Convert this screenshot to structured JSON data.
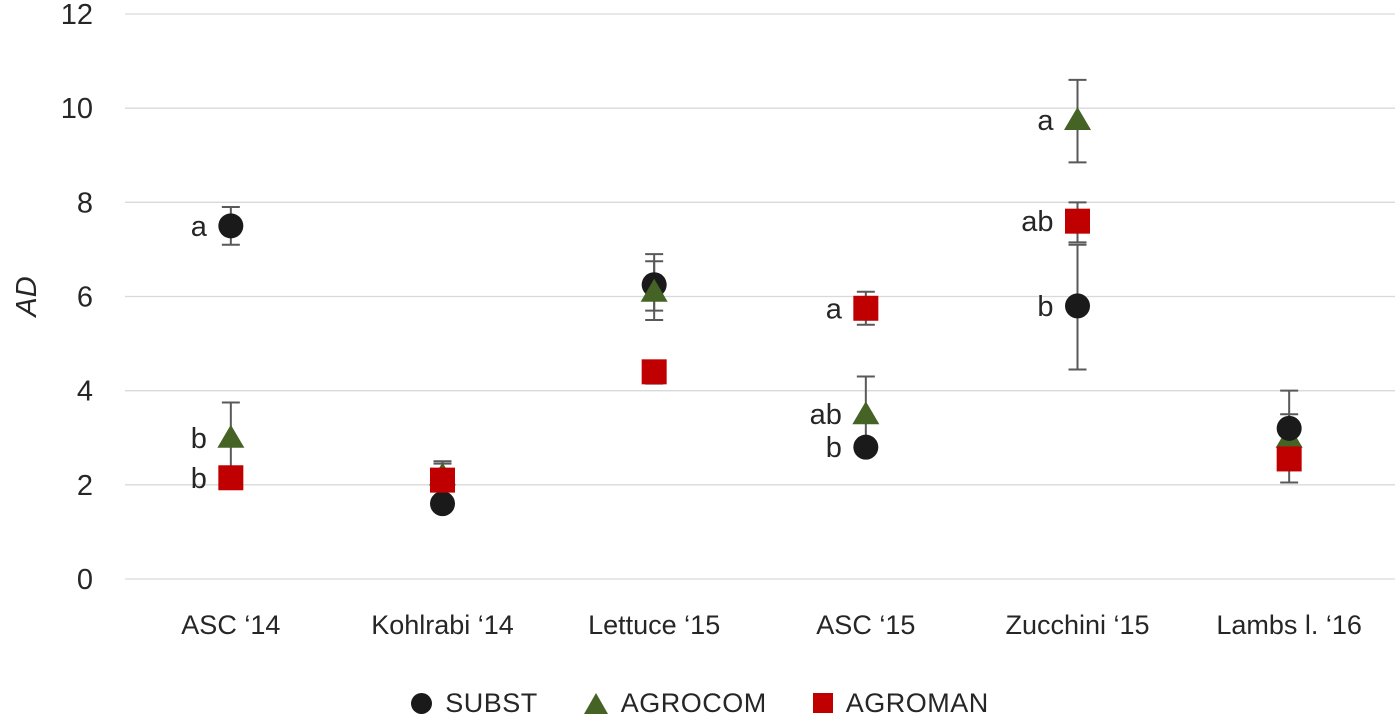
{
  "chart_data": {
    "type": "scatter",
    "title": "",
    "xlabel": "",
    "ylabel": "AD",
    "ylim": [
      0,
      12
    ],
    "yticks": [
      0,
      2,
      4,
      6,
      8,
      10,
      12
    ],
    "grid": "horizontal-light",
    "legend_position": "bottom",
    "categories": [
      "ASC ‘14",
      "Kohlrabi ‘14",
      "Lettuce ‘15",
      "ASC ‘15",
      "Zucchini  ‘15",
      "Lambs l. ‘16"
    ],
    "series": [
      {
        "name": "SUBST",
        "marker": "circle",
        "color": "#1a1a1a",
        "values": [
          7.5,
          1.6,
          6.25,
          2.8,
          5.8,
          3.2
        ],
        "err_low": [
          0.4,
          0.0,
          0.55,
          0.15,
          1.35,
          0.8
        ],
        "err_high": [
          0.4,
          0.0,
          0.65,
          0.15,
          1.3,
          0.8
        ]
      },
      {
        "name": "AGROCOM",
        "marker": "triangle",
        "color": "#456325",
        "values": [
          3.0,
          2.2,
          6.1,
          3.5,
          9.75,
          3.0
        ],
        "err_low": [
          0.7,
          0.25,
          0.6,
          0.6,
          0.9,
          0.5
        ],
        "err_high": [
          0.75,
          0.3,
          0.65,
          0.8,
          0.85,
          0.5
        ]
      },
      {
        "name": "AGROMAN",
        "marker": "square",
        "color": "#c00000",
        "values": [
          2.15,
          2.1,
          4.4,
          5.75,
          7.6,
          2.55
        ],
        "err_low": [
          0.2,
          0.35,
          0.25,
          0.35,
          0.45,
          0.5
        ],
        "err_high": [
          0.2,
          0.35,
          0.15,
          0.35,
          0.4,
          0.5
        ]
      }
    ],
    "annotations": [
      {
        "category": 0,
        "series": 0,
        "text": "a"
      },
      {
        "category": 0,
        "series": 1,
        "text": "b"
      },
      {
        "category": 0,
        "series": 2,
        "text": "b"
      },
      {
        "category": 3,
        "series": 2,
        "text": "a"
      },
      {
        "category": 3,
        "series": 1,
        "text": "ab"
      },
      {
        "category": 3,
        "series": 0,
        "text": "b"
      },
      {
        "category": 4,
        "series": 1,
        "text": "a"
      },
      {
        "category": 4,
        "series": 2,
        "text": "ab"
      },
      {
        "category": 4,
        "series": 0,
        "text": "b"
      }
    ],
    "z_order": [
      [
        0,
        1,
        2
      ],
      [
        0,
        1,
        2
      ],
      [
        0,
        1,
        2
      ],
      [
        0,
        1,
        2
      ],
      [
        0,
        1,
        2
      ],
      [
        1,
        2,
        0
      ]
    ],
    "colors": {
      "gridline": "#d9d9d9",
      "error_bar": "#595959",
      "text": "#262626"
    }
  }
}
